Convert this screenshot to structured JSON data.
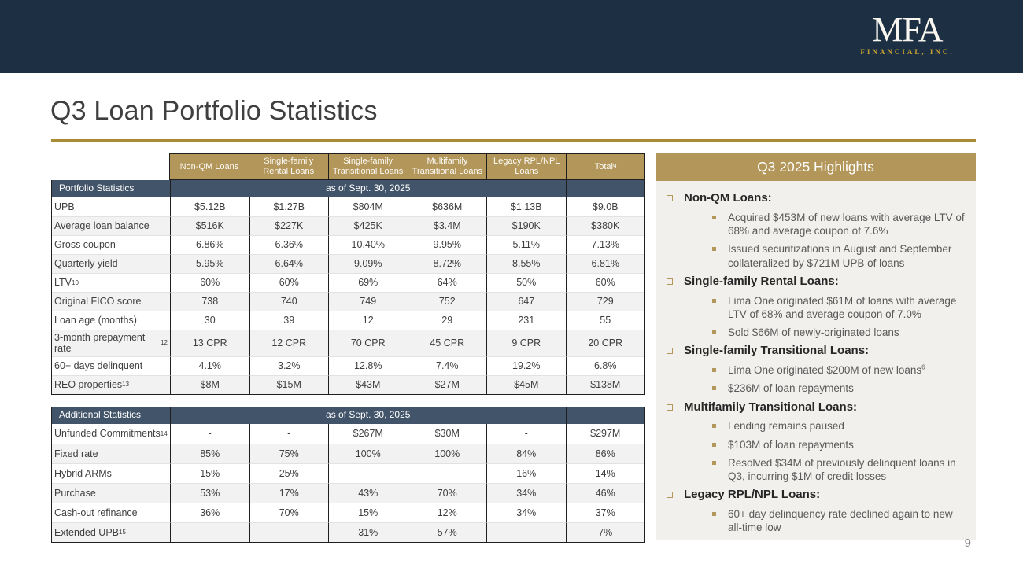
{
  "logo": {
    "main": "MFA",
    "sub": "FINANCIAL, INC."
  },
  "title": "Q3 Loan Portfolio Statistics",
  "page_number": "9",
  "colors": {
    "banner_navy": "#1d3043",
    "section_navy": "#425469",
    "accent_gold": "#b3965a",
    "rule_gold": "#a88d35",
    "logo_gold": "#c7a233",
    "alt_row_gray": "#f2f2f2",
    "panel_bg": "#f1f0ed"
  },
  "tables": [
    {
      "section_label": "Portfolio Statistics",
      "as_of": "as of Sept. 30, 2025",
      "columns": [
        {
          "label": "Non-QM Loans",
          "sup": ""
        },
        {
          "label": "Single-family Rental Loans",
          "sup": ""
        },
        {
          "label": "Single-family Transitional Loans",
          "sup": ""
        },
        {
          "label": "Multifamily Transitional Loans",
          "sup": ""
        },
        {
          "label": "Legacy RPL/NPL Loans",
          "sup": ""
        },
        {
          "label": "Total",
          "sup": "9"
        }
      ],
      "rows": [
        {
          "label": "UPB",
          "sup": "",
          "values": [
            "$5.12B",
            "$1.27B",
            "$804M",
            "$636M",
            "$1.13B",
            "$9.0B"
          ]
        },
        {
          "label": "Average loan balance",
          "sup": "",
          "values": [
            "$516K",
            "$227K",
            "$425K",
            "$3.4M",
            "$190K",
            "$380K"
          ]
        },
        {
          "label": "Gross coupon",
          "sup": "",
          "values": [
            "6.86%",
            "6.36%",
            "10.40%",
            "9.95%",
            "5.11%",
            "7.13%"
          ]
        },
        {
          "label": "Quarterly yield",
          "sup": "",
          "values": [
            "5.95%",
            "6.64%",
            "9.09%",
            "8.72%",
            "8.55%",
            "6.81%"
          ]
        },
        {
          "label": "LTV",
          "sup": "10",
          "values": [
            "60%",
            "60%",
            "69%",
            "64%",
            "50%",
            "60%"
          ]
        },
        {
          "label": "Original FICO score",
          "sup": "",
          "values": [
            "738",
            "740",
            "749",
            "752",
            "647",
            "729"
          ]
        },
        {
          "label": "Loan age (months)",
          "sup": "",
          "values": [
            "30",
            "39",
            "12",
            "29",
            "231",
            "55"
          ]
        },
        {
          "label": "3-month prepayment rate",
          "sup": "12",
          "values": [
            "13 CPR",
            "12 CPR",
            "70 CPR",
            "45 CPR",
            "9 CPR",
            "20 CPR"
          ]
        },
        {
          "label": "60+ days delinquent",
          "sup": "",
          "values": [
            "4.1%",
            "3.2%",
            "12.8%",
            "7.4%",
            "19.2%",
            "6.8%"
          ]
        },
        {
          "label": "REO properties",
          "sup": "13",
          "values": [
            "$8M",
            "$15M",
            "$43M",
            "$27M",
            "$45M",
            "$138M"
          ]
        }
      ]
    },
    {
      "section_label": "Additional Statistics",
      "as_of": "as of Sept. 30, 2025",
      "columns": [],
      "rows": [
        {
          "label": "Unfunded Commitments",
          "sup": "14",
          "values": [
            "-",
            "-",
            "$267M",
            "$30M",
            "-",
            "$297M"
          ]
        },
        {
          "label": "Fixed rate",
          "sup": "",
          "values": [
            "85%",
            "75%",
            "100%",
            "100%",
            "84%",
            "86%"
          ]
        },
        {
          "label": "Hybrid ARMs",
          "sup": "",
          "values": [
            "15%",
            "25%",
            "-",
            "-",
            "16%",
            "14%"
          ]
        },
        {
          "label": "Purchase",
          "sup": "",
          "values": [
            "53%",
            "17%",
            "43%",
            "70%",
            "34%",
            "46%"
          ]
        },
        {
          "label": "Cash-out refinance",
          "sup": "",
          "values": [
            "36%",
            "70%",
            "15%",
            "12%",
            "34%",
            "37%"
          ]
        },
        {
          "label": "Extended UPB",
          "sup": "15",
          "values": [
            "-",
            "-",
            "31%",
            "57%",
            "-",
            "7%"
          ]
        }
      ]
    }
  ],
  "highlights": {
    "title": "Q3 2025 Highlights",
    "items": [
      {
        "heading": "Non-QM Loans:",
        "bullets": [
          {
            "text": "Acquired $453M of new loans with average LTV of 68% and average coupon of 7.6%",
            "sup": ""
          },
          {
            "text": "Issued securitizations in August and September collateralized by $721M UPB of loans",
            "sup": ""
          }
        ]
      },
      {
        "heading": "Single-family Rental Loans:",
        "bullets": [
          {
            "text": "Lima One originated $61M of loans with average LTV of 68% and average coupon of 7.0%",
            "sup": ""
          },
          {
            "text": "Sold $66M of newly-originated loans",
            "sup": ""
          }
        ]
      },
      {
        "heading": "Single-family Transitional Loans:",
        "bullets": [
          {
            "text": "Lima One originated $200M of new loans",
            "sup": "6"
          },
          {
            "text": "$236M of loan repayments",
            "sup": ""
          }
        ]
      },
      {
        "heading": "Multifamily Transitional Loans:",
        "bullets": [
          {
            "text": "Lending remains paused",
            "sup": ""
          },
          {
            "text": "$103M of loan repayments",
            "sup": ""
          },
          {
            "text": "Resolved $34M of previously delinquent loans in Q3, incurring $1M of credit losses",
            "sup": ""
          }
        ]
      },
      {
        "heading": "Legacy RPL/NPL Loans:",
        "bullets": [
          {
            "text": "60+ day delinquency rate declined again to new all-time low",
            "sup": ""
          }
        ]
      }
    ]
  }
}
